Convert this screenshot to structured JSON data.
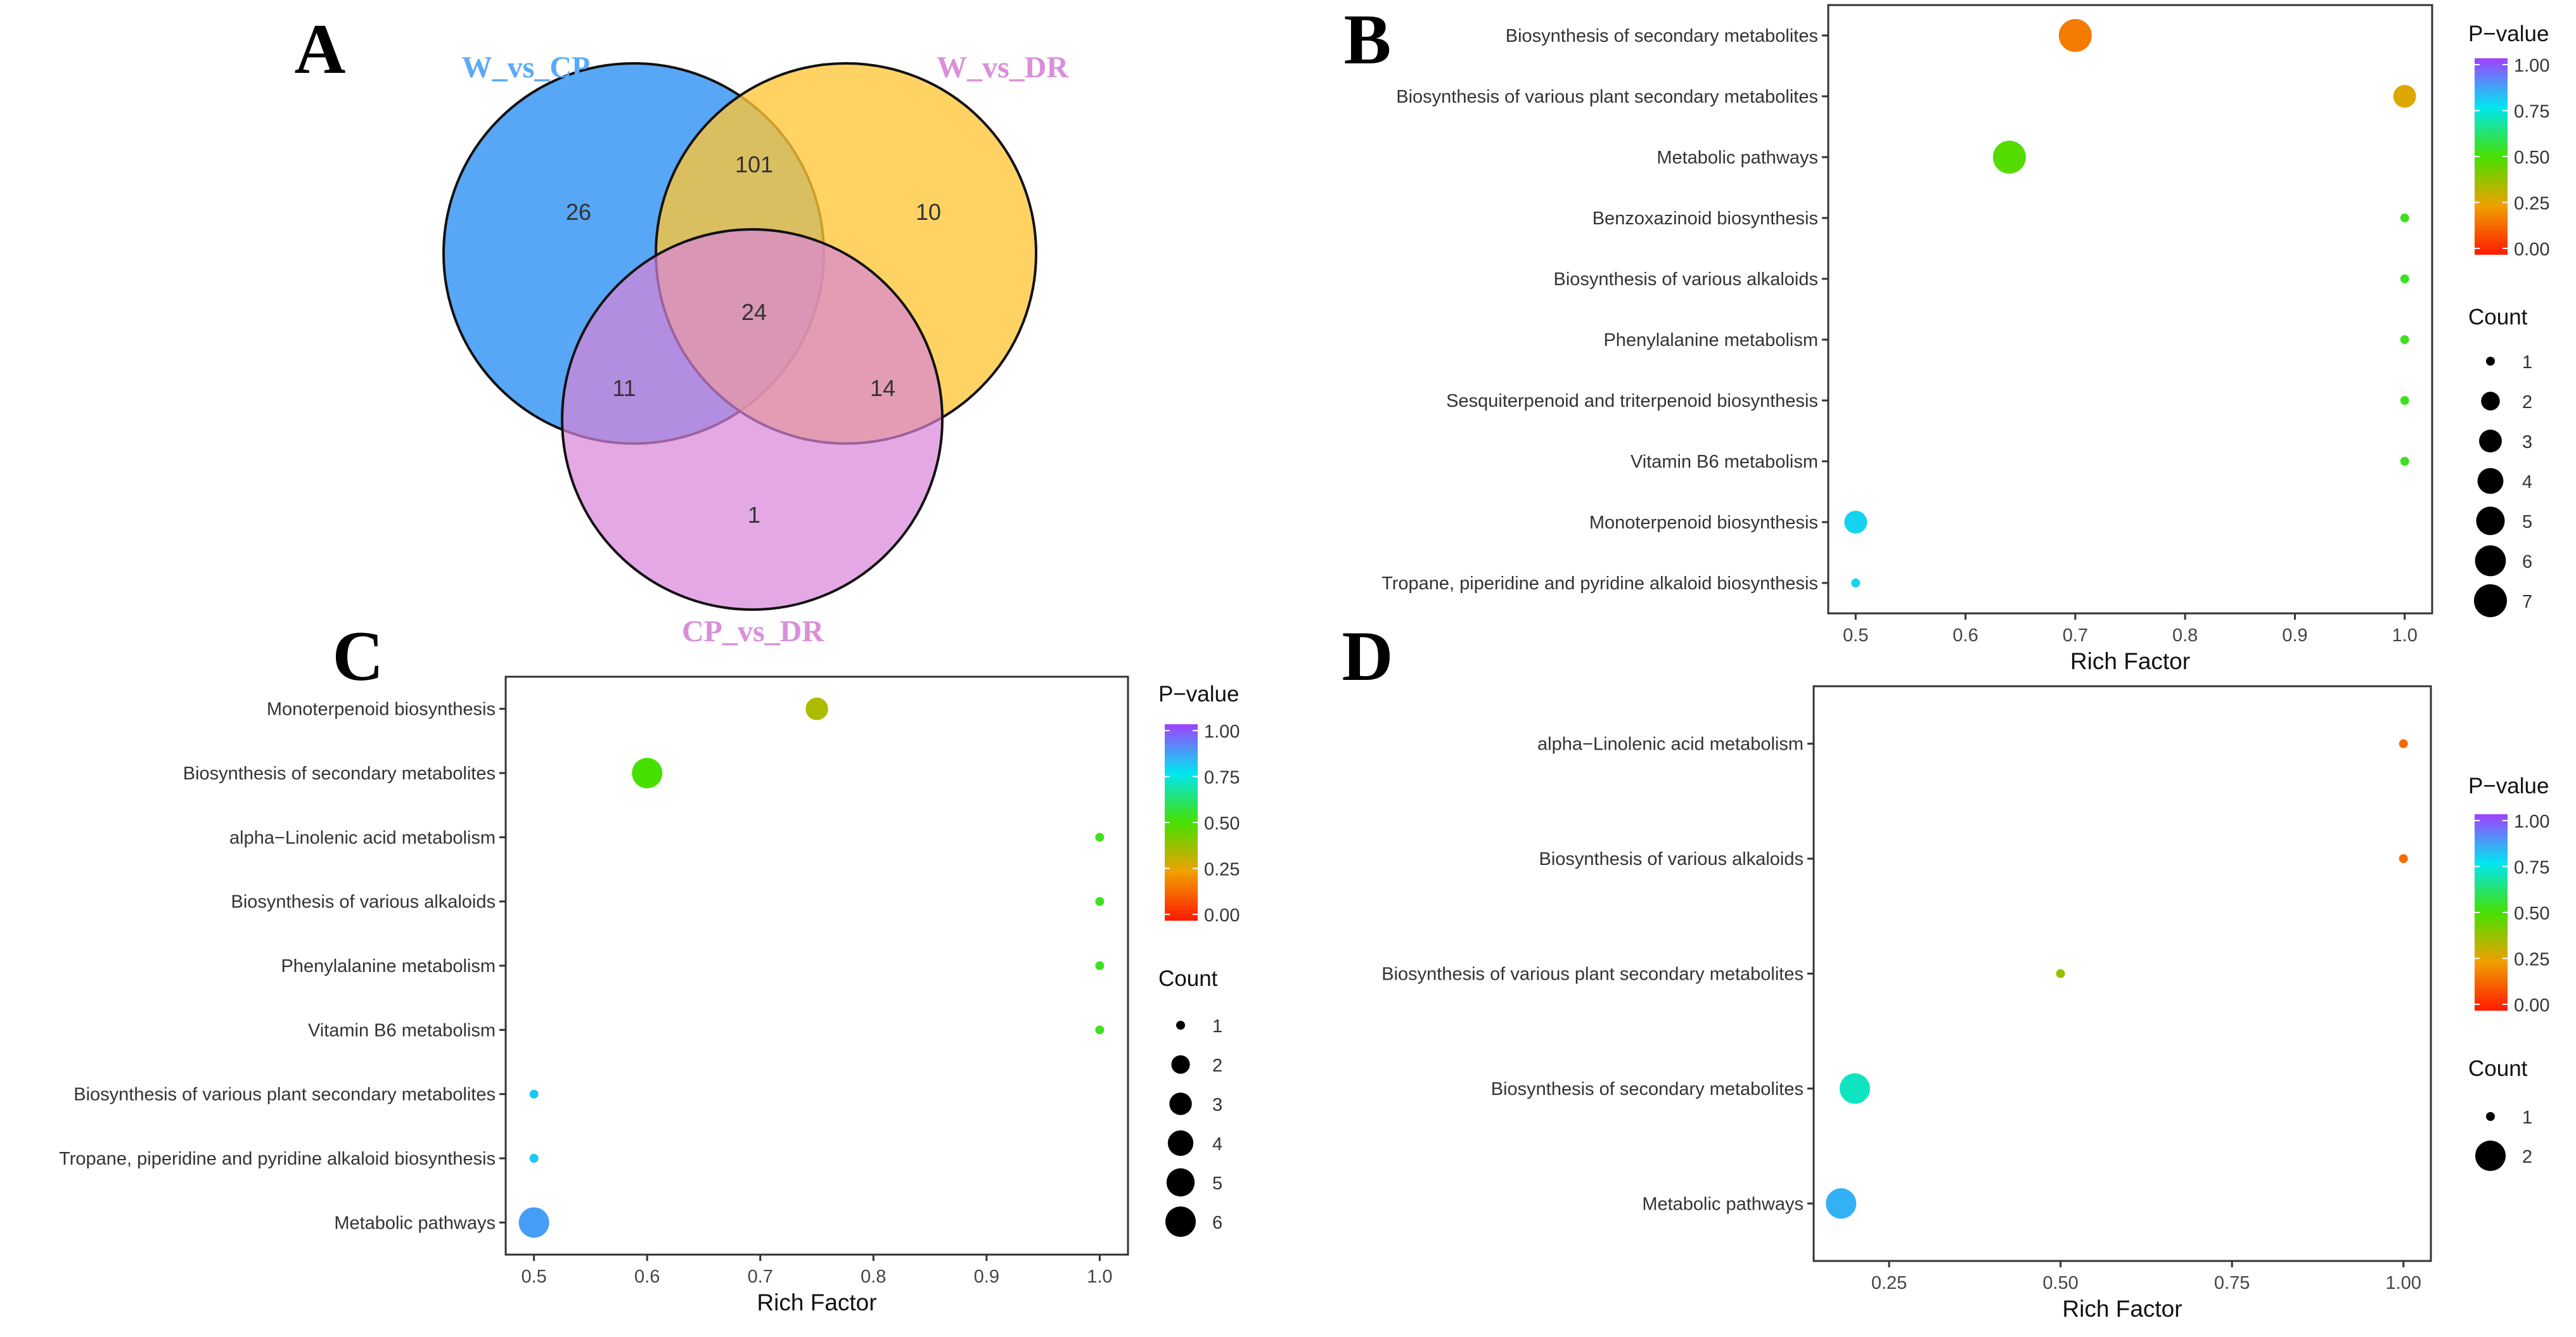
{
  "chart_data": [
    {
      "type": "venn",
      "panel": "A",
      "sets": [
        {
          "name": "W_vs_CP",
          "label_color": "#5aaaf7",
          "fill": "#3b97f5"
        },
        {
          "name": "W_vs_DR",
          "label_color": "#d98fd9",
          "fill": "#ffc637"
        },
        {
          "name": "CP_vs_DR",
          "label_color": "#d98fd9",
          "fill": "#d884d8"
        }
      ],
      "regions": {
        "only_W_vs_CP": 26,
        "only_W_vs_DR": 10,
        "only_CP_vs_DR": 1,
        "W_vs_CP_and_W_vs_DR": 101,
        "W_vs_CP_and_CP_vs_DR": 11,
        "W_vs_DR_and_CP_vs_DR": 14,
        "all_three": 24
      }
    },
    {
      "type": "scatter",
      "panel": "B",
      "xlabel": "Rich Factor",
      "xlim": [
        0.475,
        1.025
      ],
      "xticks": [
        "0.5",
        "0.6",
        "0.7",
        "0.8",
        "0.9",
        "1.0"
      ],
      "xtick_values": [
        0.5,
        0.6,
        0.7,
        0.8,
        0.9,
        1.0
      ],
      "color_legend_title": "P−value",
      "color_ticks": [
        "1.00",
        "0.75",
        "0.50",
        "0.25",
        "0.00"
      ],
      "size_legend_title": "Count",
      "size_ticks": [
        "1",
        "2",
        "3",
        "4",
        "5",
        "6",
        "7"
      ],
      "points": [
        {
          "term": "Biosynthesis of secondary metabolites",
          "rich": 0.7,
          "count": 7,
          "p": 0.18
        },
        {
          "term": "Biosynthesis of various plant secondary metabolites",
          "rich": 1.0,
          "count": 3,
          "p": 0.28
        },
        {
          "term": "Metabolic pathways",
          "rich": 0.64,
          "count": 7,
          "p": 0.48
        },
        {
          "term": "Benzoxazinoid biosynthesis",
          "rich": 1.0,
          "count": 1,
          "p": 0.53
        },
        {
          "term": "Biosynthesis of various alkaloids",
          "rich": 1.0,
          "count": 1,
          "p": 0.53
        },
        {
          "term": "Phenylalanine metabolism",
          "rich": 1.0,
          "count": 1,
          "p": 0.53
        },
        {
          "term": "Sesquiterpenoid and triterpenoid biosynthesis",
          "rich": 1.0,
          "count": 1,
          "p": 0.53
        },
        {
          "term": "Vitamin B6 metabolism",
          "rich": 1.0,
          "count": 1,
          "p": 0.53
        },
        {
          "term": "Monoterpenoid biosynthesis",
          "rich": 0.5,
          "count": 3,
          "p": 0.78
        },
        {
          "term": "Tropane, piperidine and pyridine alkaloid biosynthesis",
          "rich": 0.5,
          "count": 1,
          "p": 0.78
        }
      ]
    },
    {
      "type": "scatter",
      "panel": "C",
      "xlabel": "Rich Factor",
      "xlim": [
        0.475,
        1.025
      ],
      "xticks": [
        "0.5",
        "0.6",
        "0.7",
        "0.8",
        "0.9",
        "1.0"
      ],
      "xtick_values": [
        0.5,
        0.6,
        0.7,
        0.8,
        0.9,
        1.0
      ],
      "color_legend_title": "P−value",
      "color_ticks": [
        "1.00",
        "0.75",
        "0.50",
        "0.25",
        "0.00"
      ],
      "size_legend_title": "Count",
      "size_ticks": [
        "1",
        "2",
        "3",
        "4",
        "5",
        "6"
      ],
      "points": [
        {
          "term": "Monoterpenoid biosynthesis",
          "rich": 0.75,
          "count": 3,
          "p": 0.35
        },
        {
          "term": "Biosynthesis of secondary metabolites",
          "rich": 0.6,
          "count": 6,
          "p": 0.5
        },
        {
          "term": "alpha−Linolenic acid metabolism",
          "rich": 1.0,
          "count": 1,
          "p": 0.53
        },
        {
          "term": "Biosynthesis of various alkaloids",
          "rich": 1.0,
          "count": 1,
          "p": 0.53
        },
        {
          "term": "Phenylalanine metabolism",
          "rich": 1.0,
          "count": 1,
          "p": 0.53
        },
        {
          "term": "Vitamin B6 metabolism",
          "rich": 1.0,
          "count": 1,
          "p": 0.53
        },
        {
          "term": "Biosynthesis of various plant secondary metabolites",
          "rich": 0.5,
          "count": 1,
          "p": 0.8
        },
        {
          "term": "Tropane, piperidine and pyridine alkaloid biosynthesis",
          "rich": 0.5,
          "count": 1,
          "p": 0.8
        },
        {
          "term": "Metabolic pathways",
          "rich": 0.5,
          "count": 6,
          "p": 0.86
        }
      ]
    },
    {
      "type": "scatter",
      "panel": "D",
      "xlabel": "Rich Factor",
      "xlim": [
        0.14,
        1.04
      ],
      "xticks": [
        "0.25",
        "0.50",
        "0.75",
        "1.00"
      ],
      "xtick_values": [
        0.25,
        0.5,
        0.75,
        1.0
      ],
      "color_legend_title": "P−value",
      "color_ticks": [
        "1.00",
        "0.75",
        "0.50",
        "0.25",
        "0.00"
      ],
      "size_legend_title": "Count",
      "size_ticks": [
        "1",
        "2"
      ],
      "points": [
        {
          "term": "alpha−Linolenic acid metabolism",
          "rich": 1.0,
          "count": 1,
          "p": 0.15
        },
        {
          "term": "Biosynthesis of various alkaloids",
          "rich": 1.0,
          "count": 1,
          "p": 0.15
        },
        {
          "term": "Biosynthesis of various plant secondary metabolites",
          "rich": 0.5,
          "count": 1,
          "p": 0.38
        },
        {
          "term": "Biosynthesis of secondary metabolites",
          "rich": 0.2,
          "count": 2,
          "p": 0.7
        },
        {
          "term": "Metabolic pathways",
          "rich": 0.18,
          "count": 2,
          "p": 0.83
        }
      ]
    }
  ]
}
